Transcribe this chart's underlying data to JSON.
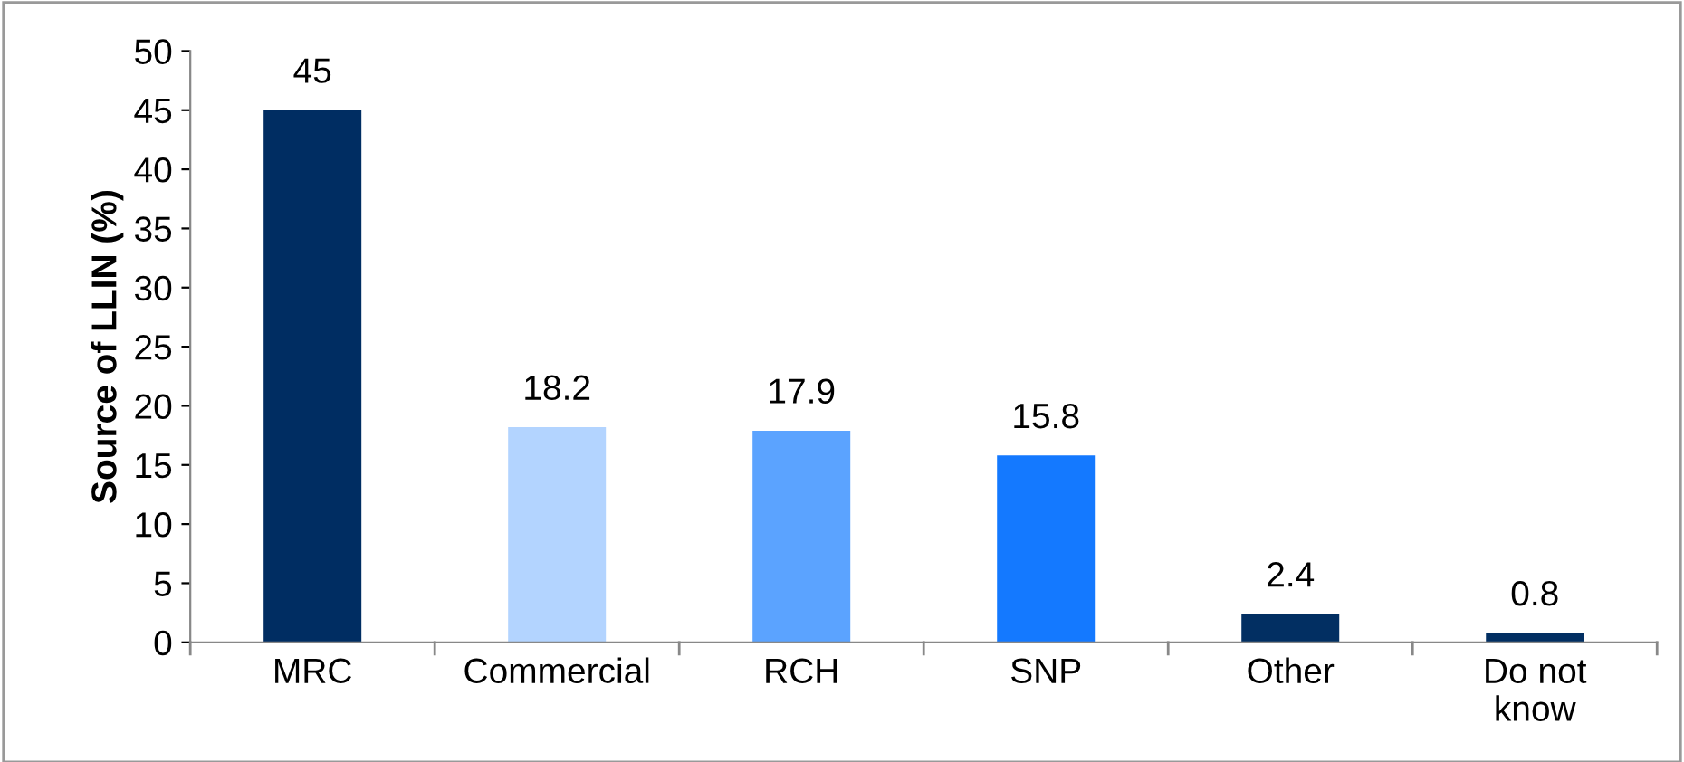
{
  "chart_data": {
    "type": "bar",
    "ylabel": "Source of LLIN (%)",
    "categories": [
      "MRC",
      "Commercial",
      "RCH",
      "SNP",
      "Other",
      "Do not\nknow"
    ],
    "values": [
      45,
      18.2,
      17.9,
      15.8,
      2.4,
      0.8
    ],
    "colors": [
      "#002d62",
      "#b3d4ff",
      "#5ba3ff",
      "#1479ff",
      "#022f62",
      "#022f62"
    ],
    "ylim": [
      0,
      50
    ],
    "yticks": [
      0,
      5,
      10,
      15,
      20,
      25,
      30,
      35,
      40,
      45,
      50
    ],
    "grid": false,
    "data_labels": true
  }
}
